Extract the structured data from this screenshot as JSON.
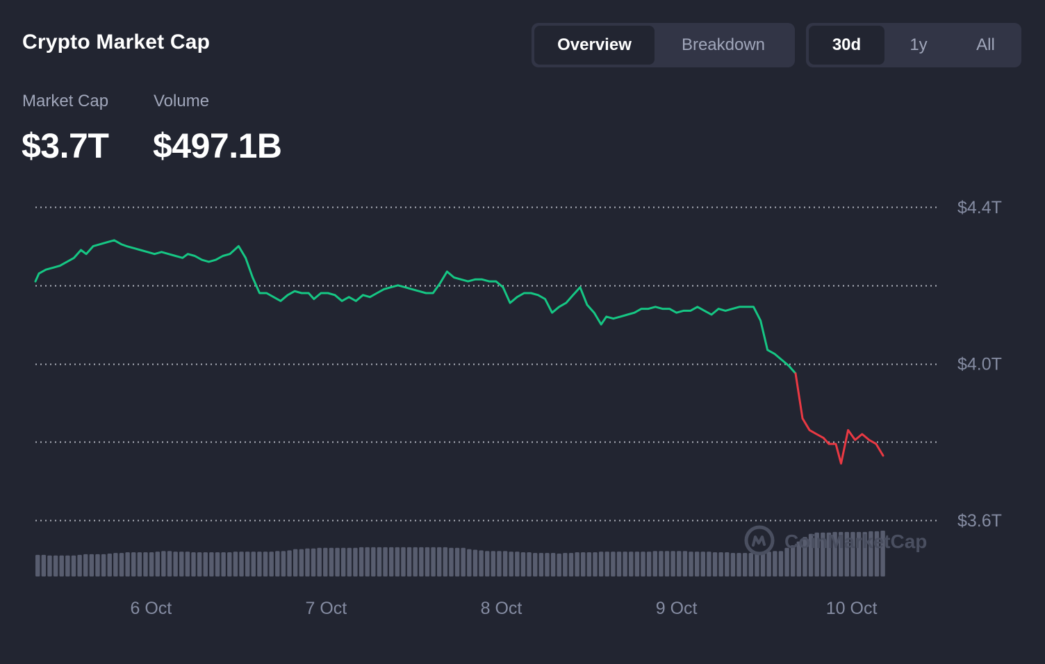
{
  "header": {
    "title": "Crypto Market Cap",
    "view_tabs": [
      {
        "label": "Overview",
        "active": true
      },
      {
        "label": "Breakdown",
        "active": false
      }
    ],
    "range_tabs": [
      {
        "label": "30d",
        "active": true
      },
      {
        "label": "1y",
        "active": false
      },
      {
        "label": "All",
        "active": false
      }
    ]
  },
  "stats": {
    "market_cap_label": "Market Cap",
    "market_cap_value": "$3.7T",
    "volume_label": "Volume",
    "volume_value": "$497.1B"
  },
  "watermark": {
    "text": "CoinMarketCap",
    "icon": "coinmarketcap-logo-icon"
  },
  "colors": {
    "background": "#222531",
    "up_line": "#16c784",
    "down_line": "#ea3943",
    "volume_bar": "#585d6f",
    "grid": "#c9ccd6",
    "tab_bg": "#323546"
  },
  "chart_data": {
    "type": "line",
    "title": "",
    "xlabel": "",
    "ylabel": "",
    "y_unit": "USD trillions",
    "ylim": [
      3.55,
      4.45
    ],
    "yticks": [
      {
        "value": 4.4,
        "label": "$4.4T"
      },
      {
        "value": 4.0,
        "label": "$4.0T"
      },
      {
        "value": 3.6,
        "label": "$3.6T"
      }
    ],
    "grid_values": [
      4.4,
      4.2,
      4.0,
      3.8,
      3.6
    ],
    "grid": true,
    "xticks": [
      {
        "x": 6.0,
        "label": "6 Oct"
      },
      {
        "x": 7.0,
        "label": "7 Oct"
      },
      {
        "x": 8.0,
        "label": "8 Oct"
      },
      {
        "x": 9.0,
        "label": "9 Oct"
      },
      {
        "x": 10.0,
        "label": "10 Oct"
      }
    ],
    "x_range": [
      5.34,
      10.77
    ],
    "x_unit": "day of October",
    "series": [
      {
        "color_up": "#16c784",
        "color_down": "#ea3943",
        "down_from_x": 9.8,
        "points": [
          [
            5.34,
            4.21
          ],
          [
            5.36,
            4.23
          ],
          [
            5.4,
            4.24
          ],
          [
            5.44,
            4.245
          ],
          [
            5.48,
            4.25
          ],
          [
            5.52,
            4.26
          ],
          [
            5.56,
            4.27
          ],
          [
            5.6,
            4.29
          ],
          [
            5.63,
            4.28
          ],
          [
            5.67,
            4.3
          ],
          [
            5.71,
            4.305
          ],
          [
            5.75,
            4.31
          ],
          [
            5.79,
            4.315
          ],
          [
            5.83,
            4.305
          ],
          [
            5.86,
            4.3
          ],
          [
            5.9,
            4.295
          ],
          [
            5.94,
            4.29
          ],
          [
            5.98,
            4.285
          ],
          [
            6.02,
            4.28
          ],
          [
            6.06,
            4.285
          ],
          [
            6.1,
            4.28
          ],
          [
            6.14,
            4.275
          ],
          [
            6.18,
            4.27
          ],
          [
            6.21,
            4.28
          ],
          [
            6.25,
            4.275
          ],
          [
            6.29,
            4.265
          ],
          [
            6.33,
            4.26
          ],
          [
            6.37,
            4.265
          ],
          [
            6.41,
            4.275
          ],
          [
            6.45,
            4.28
          ],
          [
            6.5,
            4.3
          ],
          [
            6.54,
            4.27
          ],
          [
            6.58,
            4.22
          ],
          [
            6.62,
            4.18
          ],
          [
            6.66,
            4.18
          ],
          [
            6.7,
            4.17
          ],
          [
            6.74,
            4.16
          ],
          [
            6.78,
            4.175
          ],
          [
            6.82,
            4.185
          ],
          [
            6.86,
            4.18
          ],
          [
            6.9,
            4.18
          ],
          [
            6.93,
            4.165
          ],
          [
            6.97,
            4.18
          ],
          [
            7.01,
            4.18
          ],
          [
            7.05,
            4.175
          ],
          [
            7.09,
            4.16
          ],
          [
            7.13,
            4.17
          ],
          [
            7.17,
            4.16
          ],
          [
            7.21,
            4.175
          ],
          [
            7.25,
            4.17
          ],
          [
            7.29,
            4.18
          ],
          [
            7.33,
            4.19
          ],
          [
            7.37,
            4.195
          ],
          [
            7.41,
            4.2
          ],
          [
            7.45,
            4.195
          ],
          [
            7.49,
            4.19
          ],
          [
            7.53,
            4.185
          ],
          [
            7.57,
            4.18
          ],
          [
            7.61,
            4.18
          ],
          [
            7.65,
            4.205
          ],
          [
            7.69,
            4.235
          ],
          [
            7.73,
            4.22
          ],
          [
            7.77,
            4.215
          ],
          [
            7.81,
            4.21
          ],
          [
            7.85,
            4.215
          ],
          [
            7.89,
            4.215
          ],
          [
            7.93,
            4.21
          ],
          [
            7.97,
            4.21
          ],
          [
            8.01,
            4.195
          ],
          [
            8.05,
            4.155
          ],
          [
            8.09,
            4.17
          ],
          [
            8.13,
            4.18
          ],
          [
            8.17,
            4.18
          ],
          [
            8.21,
            4.175
          ],
          [
            8.25,
            4.165
          ],
          [
            8.29,
            4.13
          ],
          [
            8.33,
            4.145
          ],
          [
            8.37,
            4.155
          ],
          [
            8.41,
            4.175
          ],
          [
            8.45,
            4.195
          ],
          [
            8.49,
            4.15
          ],
          [
            8.53,
            4.13
          ],
          [
            8.57,
            4.1
          ],
          [
            8.6,
            4.12
          ],
          [
            8.64,
            4.115
          ],
          [
            8.68,
            4.12
          ],
          [
            8.72,
            4.125
          ],
          [
            8.76,
            4.13
          ],
          [
            8.8,
            4.14
          ],
          [
            8.84,
            4.14
          ],
          [
            8.88,
            4.145
          ],
          [
            8.92,
            4.14
          ],
          [
            8.96,
            4.14
          ],
          [
            9.0,
            4.13
          ],
          [
            9.04,
            4.135
          ],
          [
            9.08,
            4.135
          ],
          [
            9.12,
            4.145
          ],
          [
            9.16,
            4.135
          ],
          [
            9.2,
            4.125
          ],
          [
            9.24,
            4.14
          ],
          [
            9.28,
            4.135
          ],
          [
            9.32,
            4.14
          ],
          [
            9.36,
            4.145
          ],
          [
            9.4,
            4.145
          ],
          [
            9.44,
            4.145
          ],
          [
            9.48,
            4.11
          ],
          [
            9.52,
            4.035
          ],
          [
            9.56,
            4.025
          ],
          [
            9.6,
            4.01
          ],
          [
            9.64,
            3.995
          ],
          [
            9.68,
            3.975
          ],
          [
            9.72,
            3.86
          ],
          [
            9.76,
            3.83
          ],
          [
            9.8,
            3.82
          ],
          [
            9.84,
            3.81
          ],
          [
            9.87,
            3.795
          ],
          [
            9.91,
            3.795
          ],
          [
            9.94,
            3.745
          ],
          [
            9.98,
            3.83
          ],
          [
            10.02,
            3.805
          ],
          [
            10.06,
            3.82
          ],
          [
            10.1,
            3.805
          ],
          [
            10.14,
            3.795
          ],
          [
            10.18,
            3.765
          ]
        ]
      }
    ],
    "volume_bars": [
      34,
      34,
      33,
      33,
      33,
      33,
      33,
      34,
      35,
      35,
      35,
      35,
      36,
      37,
      37,
      38,
      38,
      38,
      38,
      38,
      39,
      40,
      40,
      39,
      39,
      39,
      38,
      38,
      38,
      38,
      38,
      38,
      38,
      39,
      39,
      39,
      39,
      39,
      39,
      39,
      40,
      40,
      41,
      43,
      43,
      44,
      44,
      45,
      45,
      45,
      45,
      45,
      45,
      45,
      46,
      46,
      46,
      46,
      46,
      46,
      46,
      46,
      46,
      46,
      46,
      46,
      46,
      46,
      46,
      45,
      45,
      45,
      43,
      42,
      41,
      40,
      40,
      40,
      40,
      39,
      39,
      38,
      38,
      37,
      37,
      37,
      37,
      36,
      37,
      37,
      38,
      38,
      38,
      38,
      39,
      39,
      39,
      39,
      39,
      39,
      39,
      39,
      39,
      40,
      40,
      40,
      40,
      40,
      40,
      39,
      39,
      39,
      39,
      38,
      38,
      38,
      37,
      37,
      37,
      37,
      37,
      38,
      39,
      40,
      40,
      45,
      49,
      55,
      62,
      67,
      69,
      69,
      69,
      70,
      70,
      70,
      70,
      70,
      70,
      71,
      71,
      72
    ]
  }
}
